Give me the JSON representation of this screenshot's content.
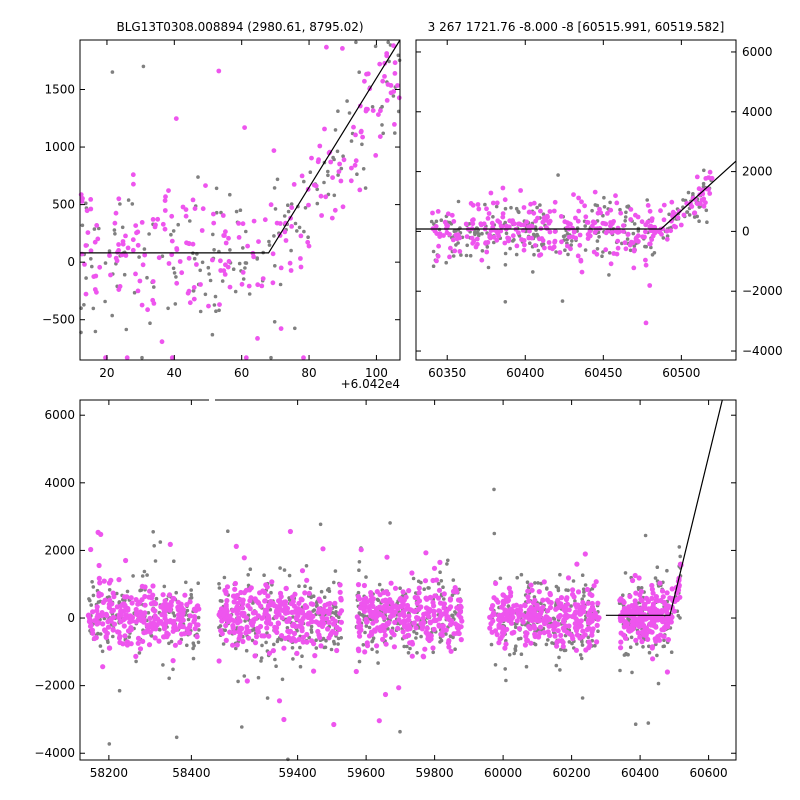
{
  "colors": {
    "primary_points": "#808080",
    "secondary_points": "#ee55ee",
    "model_line": "#000000"
  },
  "chart_data": [
    {
      "type": "scatter",
      "panel": "top-left",
      "title": "BLG13T0308.008894 (2980.61, 8795.02)",
      "x_offset_label": "+6.042e4",
      "xlim": [
        12,
        107
      ],
      "ylim": [
        -850,
        1930
      ],
      "xticks": [
        20,
        40,
        60,
        80,
        100
      ],
      "yticks": [
        -500,
        0,
        500,
        1000,
        1500
      ],
      "xtick_labels": [
        "20",
        "40",
        "60",
        "80",
        "100"
      ],
      "ytick_labels": [
        "−500",
        "0",
        "500",
        "1000",
        "1500"
      ],
      "model_line": {
        "x": [
          12,
          68,
          107
        ],
        "y": [
          80,
          80,
          1930
        ]
      },
      "point_cloud": {
        "gray": {
          "count": 180,
          "x_range": [
            12,
            107
          ],
          "baseline": 0,
          "spread": 300
        },
        "pink": {
          "count": 230,
          "x_range": [
            12,
            107
          ],
          "baseline": 100,
          "spread": 320
        }
      }
    },
    {
      "type": "scatter",
      "panel": "top-right",
      "title": "3 267 1721.76 -8.000 -8 [60515.991, 60519.582]",
      "xlim": [
        60330,
        60535
      ],
      "ylim": [
        -4300,
        6400
      ],
      "xticks": [
        60350,
        60400,
        60450,
        60500
      ],
      "yticks": [
        -4000,
        -2000,
        0,
        2000,
        4000,
        6000
      ],
      "xtick_labels": [
        "60350",
        "60400",
        "60450",
        "60500"
      ],
      "ytick_labels": [
        "−4000",
        "−2000",
        "0",
        "2000",
        "4000",
        "6000"
      ],
      "y_axis_side": "right",
      "model_line": {
        "x": [
          60330,
          60487,
          60535
        ],
        "y": [
          80,
          80,
          2350
        ]
      },
      "point_cloud": {
        "gray": {
          "count": 260,
          "x_range": [
            60340,
            60520
          ],
          "baseline": 0,
          "spread": 450
        },
        "pink": {
          "count": 330,
          "x_range": [
            60340,
            60520
          ],
          "baseline": 50,
          "spread": 480
        }
      }
    },
    {
      "type": "scatter",
      "panel": "bottom",
      "xlim": [
        58130,
        60680
      ],
      "broken_axis": {
        "left_range": [
          58130,
          58450
        ],
        "right_range": [
          59150,
          60680
        ]
      },
      "ylim": [
        -4200,
        6450
      ],
      "xticks": [
        58200,
        58400,
        59400,
        59600,
        59800,
        60000,
        60200,
        60400,
        60600
      ],
      "yticks": [
        -4000,
        -2000,
        0,
        2000,
        4000,
        6000
      ],
      "xtick_labels": [
        "58200",
        "58400",
        "59400",
        "59600",
        "59800",
        "60000",
        "60200",
        "60400",
        "60600"
      ],
      "ytick_labels": [
        "−4000",
        "−2000",
        "0",
        "2000",
        "4000",
        "6000"
      ],
      "model_line": {
        "x": [
          60300,
          60487,
          60640
        ],
        "y": [
          80,
          80,
          6450
        ]
      },
      "seasons": [
        {
          "x_range": [
            58150,
            58420
          ],
          "count_gray": 170,
          "count_pink": 260
        },
        {
          "x_range": [
            59170,
            59530
          ],
          "count_gray": 220,
          "count_pink": 330
        },
        {
          "x_range": [
            59570,
            59880
          ],
          "count_gray": 200,
          "count_pink": 300
        },
        {
          "x_range": [
            59960,
            60280
          ],
          "count_gray": 200,
          "count_pink": 300
        },
        {
          "x_range": [
            60340,
            60520
          ],
          "count_gray": 150,
          "count_pink": 220
        }
      ]
    }
  ]
}
